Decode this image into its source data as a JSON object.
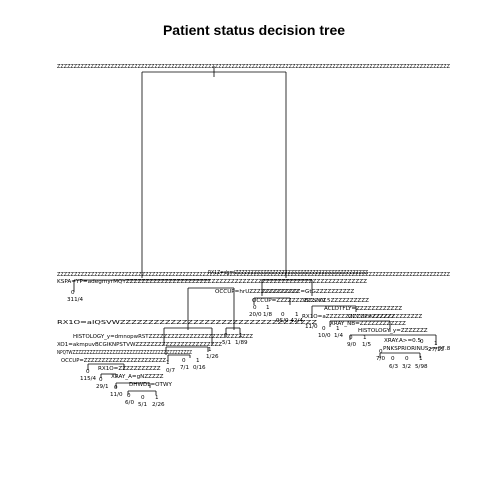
{
  "title": "Patient status decision tree",
  "labels": {
    "root_split": "ZZZZZZZZZZZZZZZZZZZZZZZZZZZZZZZZZZZZZZZZZZZZZZZZZZZZZZZZZZZZZZZZZZZZZZZZZZZZZZZZZZZZZZZZZZZZZZZZZZZZZZZZZZZZZZZZZZZZZ",
    "left_split": "ZZZZZZZZZZZZZZZZZZZZZZZZZZZZZZZZZZZZZZZZZZZZZZZZZZZZZZZZZZZZZZZZZZZZZZZZZZZZZZZZZZZZZZZZZZZZZZZZZZZZZZZZZZZZZZZZZZZZ",
    "mid_split": "RX1Z=dgmlZZZZZZZZZZZZZZZZZZZZZZZZZZZZZZZZZZZZZZZZZZZ",
    "right_split": "ZZZZZZZZZZZZZZZZZZZZZZZZZZZZZZZZZZZZZZZZZZZZZZZZZZ",
    "ksp_split": "KSPA=YP=adegmyrMQYZZZZZZZZZZZZZZZZZZZZZZZZZZZZZZZZZZZZZZZZZZZZZZZZZZZZZZZZZZZZZZ",
    "leaf_311": "311/4",
    "occup_split": "OCCUP=hrUZZZZZZZZZZZZZ",
    "occup_split_r": "ZZZZZZZZZZ=GtGZZZZZZZZZZ",
    "occup_b_split": "OCCUP=ZZZZZZZZZZZZZ",
    "occup_b_r": "IBZ>=0.5ZZZZZZZZZZ",
    "leaf_20": "20/0",
    "leaf_18": "1/8",
    "leaf_95": "9S/0 42/4",
    "zero_a": "0",
    "one_a": "1",
    "rx1o_split": "RX1O=aIQSVWZZZZZZZZZZZZZZZZZZZZZZZZZZZZZZZZZZZ",
    "rx1o_right": "RX1O=aZZZZZZZZZZZZZZZZZZ",
    "histology_split": "HISTOLOGY_y=dmnopwRSTZZZZZZZZZZZZZZZZZZZZZZZZZZZZ",
    "xo_split": "XO1=akmpuvBCGIKNPSTVWZZZZZZZZZZZZZZZZZZZZZZZ",
    "npqt_split": "NPQTWZZZZZZZZZZZZZZZZZZZZZZZZZZZZZZZZZZZZZZZZZZ",
    "occup_c_split": "OCCUP=ZZZZZZZZZZZZZZZZZZZZZZZ",
    "leaf_121": "5/1",
    "leaf_189": "1/89",
    "leaf_126": "1/26",
    "leaf_115": "115/4",
    "leaf_291": "29/1",
    "leaf_110": "11/0",
    "leaf_60": "6/0",
    "leaf_51": "5/1",
    "leaf_226": "2/26",
    "leaf_07": "0/7",
    "leaf_71": "7/1",
    "leaf_016": "0/16",
    "rxa_split": "RX1O=ZZZZZZZZZZZ",
    "rxa_b": "XRAY_A=gNZZZZZ",
    "rxa_c": "DHWDL=OTWY",
    "aclotfly": "ACLOTFLY=ZZZZZZZZZZZZ",
    "occup_d": "OCCUP=ZZZZZZZZZZZZZ",
    "occup_d_r": "XRAY_NB=ZZZZZZZZZZZZ",
    "histology_b": "HISTOLOGY_y=ZZZZZZZ",
    "xray_b": "XRAY.A>=0.5",
    "pnksp": "PNKSPRIORINUS>=87.8",
    "leaf_110b": "11/0",
    "leaf_100": "10/0",
    "leaf_14": "1/4",
    "leaf_90": "9/0",
    "leaf_15": "1/5",
    "leaf_2715": "27/15",
    "leaf_70": "7/0",
    "leaf_63": "6/3",
    "leaf_32": "3/2",
    "leaf_598": "5/98"
  }
}
